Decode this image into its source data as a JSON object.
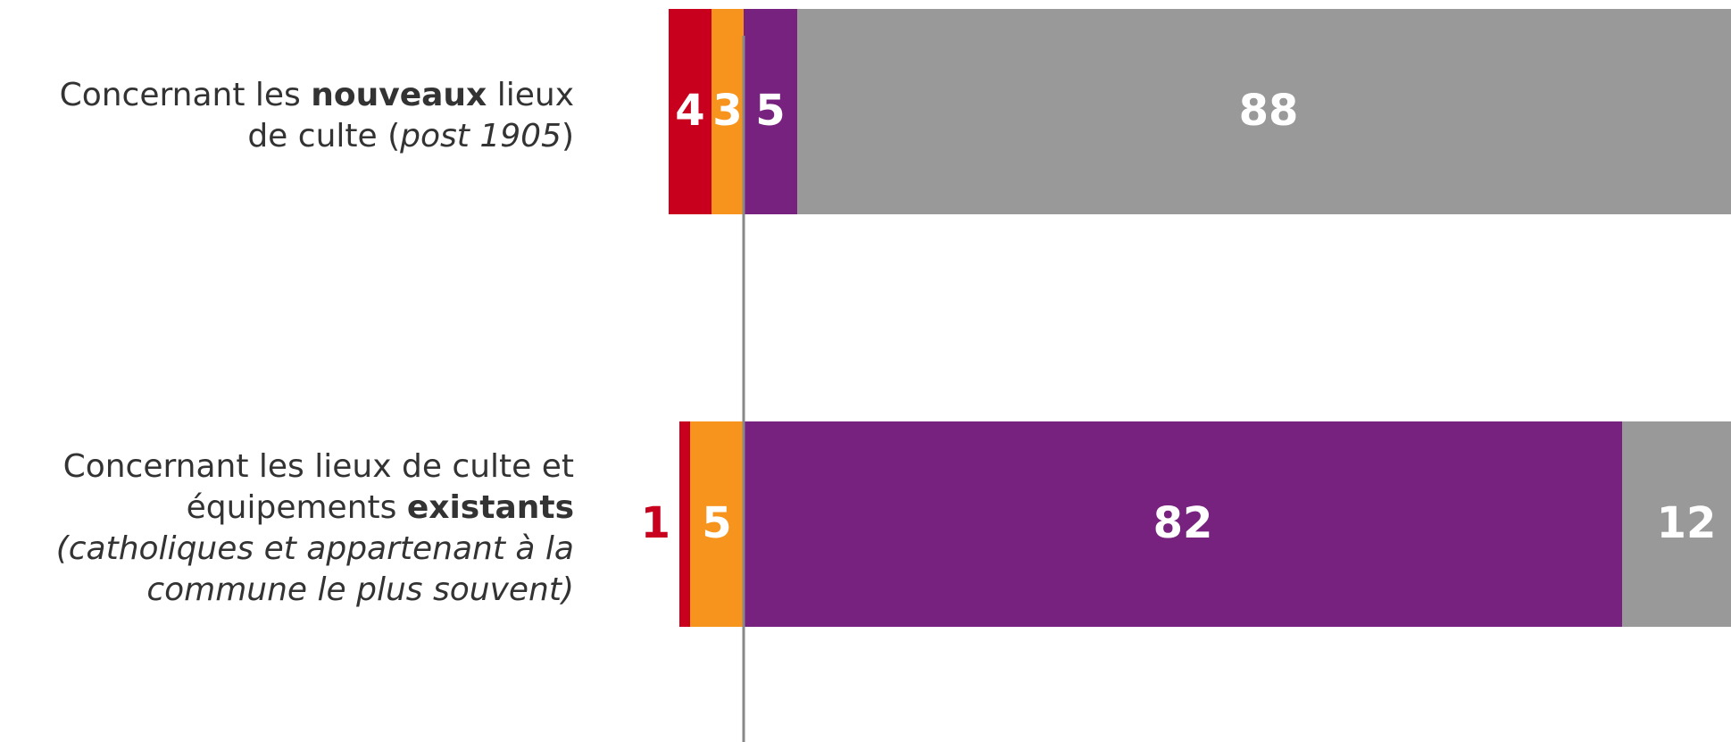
{
  "chart_data": {
    "type": "diverging-bar",
    "categories": [
      [
        [
          {
            "text": "Concernant les ",
            "style": "normal"
          },
          {
            "text": "nouveaux",
            "style": "bold"
          },
          {
            "text": " lieux",
            "style": "normal"
          }
        ],
        [
          {
            "text": "de culte (",
            "style": "normal"
          },
          {
            "text": "post 1905",
            "style": "italic"
          },
          {
            "text": ")",
            "style": "normal"
          }
        ]
      ],
      [
        [
          {
            "text": "Concernant les lieux de culte et",
            "style": "normal"
          }
        ],
        [
          {
            "text": "équipements ",
            "style": "normal"
          },
          {
            "text": "existants",
            "style": "bold"
          }
        ],
        [
          {
            "text": "(catholiques et appartenant à la",
            "style": "italic"
          }
        ],
        [
          {
            "text": "commune le plus souvent)",
            "style": "italic"
          }
        ]
      ]
    ],
    "series": [
      {
        "color": "#c8001e",
        "side": "left",
        "values": [
          4,
          1
        ]
      },
      {
        "color": "#f7941d",
        "side": "left",
        "values": [
          3,
          5
        ]
      },
      {
        "color": "#77227f",
        "side": "right",
        "values": [
          5,
          82
        ]
      },
      {
        "color": "#999999",
        "side": "right",
        "values": [
          88,
          12
        ]
      }
    ]
  }
}
